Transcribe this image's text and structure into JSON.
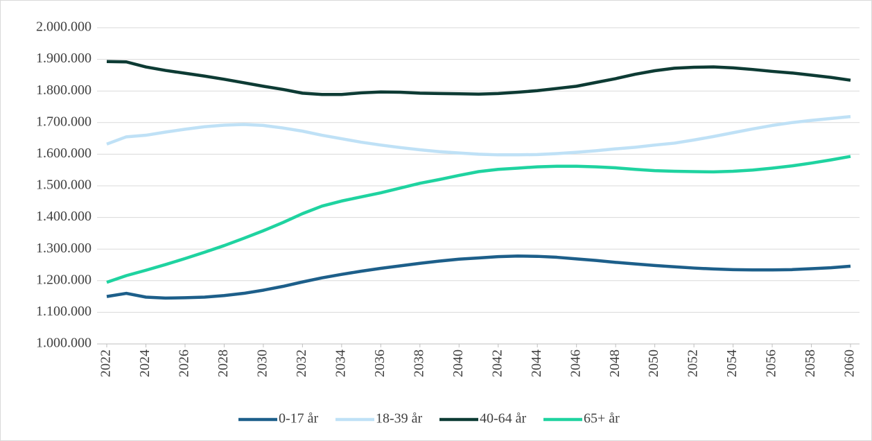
{
  "chart_data": {
    "type": "line",
    "x": [
      2022,
      2023,
      2024,
      2025,
      2026,
      2027,
      2028,
      2029,
      2030,
      2031,
      2032,
      2033,
      2034,
      2035,
      2036,
      2037,
      2038,
      2039,
      2040,
      2041,
      2042,
      2043,
      2044,
      2045,
      2046,
      2047,
      2048,
      2049,
      2050,
      2051,
      2052,
      2053,
      2054,
      2055,
      2056,
      2057,
      2058,
      2059,
      2060
    ],
    "xlim": [
      2022,
      2060
    ],
    "xticks": [
      2022,
      2024,
      2026,
      2028,
      2030,
      2032,
      2034,
      2036,
      2038,
      2040,
      2042,
      2044,
      2046,
      2048,
      2050,
      2052,
      2054,
      2056,
      2058,
      2060
    ],
    "ylim": [
      1000000,
      2000000
    ],
    "yticks": [
      {
        "value": 1000000,
        "label": "1.000.000"
      },
      {
        "value": 1100000,
        "label": "1.100.000"
      },
      {
        "value": 1200000,
        "label": "1.200.000"
      },
      {
        "value": 1300000,
        "label": "1.300.000"
      },
      {
        "value": 1400000,
        "label": "1.400.000"
      },
      {
        "value": 1500000,
        "label": "1.500.000"
      },
      {
        "value": 1600000,
        "label": "1.600.000"
      },
      {
        "value": 1700000,
        "label": "1.700.000"
      },
      {
        "value": 1800000,
        "label": "1.800.000"
      },
      {
        "value": 1900000,
        "label": "1.900.000"
      },
      {
        "value": 2000000,
        "label": "2.000.000"
      }
    ],
    "grid": true,
    "legend": "bottom",
    "series": [
      {
        "name": "0-17 år",
        "color": "#1d5f8a",
        "values": [
          1150000,
          1160000,
          1148000,
          1145000,
          1146000,
          1148000,
          1153000,
          1160000,
          1170000,
          1182000,
          1196000,
          1209000,
          1220000,
          1230000,
          1239000,
          1247000,
          1255000,
          1262000,
          1268000,
          1272000,
          1276000,
          1278000,
          1277000,
          1274000,
          1269000,
          1264000,
          1258000,
          1253000,
          1248000,
          1244000,
          1240000,
          1237000,
          1235000,
          1234000,
          1234000,
          1235000,
          1238000,
          1241000,
          1246000
        ]
      },
      {
        "name": "18-39 år",
        "color": "#bfe1f6",
        "values": [
          1632000,
          1655000,
          1660000,
          1670000,
          1679000,
          1687000,
          1692000,
          1694000,
          1691000,
          1683000,
          1673000,
          1660000,
          1649000,
          1638000,
          1629000,
          1621000,
          1614000,
          1608000,
          1604000,
          1600000,
          1598000,
          1598000,
          1599000,
          1602000,
          1606000,
          1611000,
          1617000,
          1622000,
          1629000,
          1635000,
          1645000,
          1656000,
          1668000,
          1680000,
          1691000,
          1700000,
          1707000,
          1713000,
          1719000
        ]
      },
      {
        "name": "40-64 år",
        "color": "#0d3b34",
        "values": [
          1893000,
          1892000,
          1876000,
          1865000,
          1856000,
          1847000,
          1837000,
          1826000,
          1815000,
          1805000,
          1793000,
          1789000,
          1789000,
          1794000,
          1797000,
          1796000,
          1793000,
          1792000,
          1791000,
          1790000,
          1792000,
          1796000,
          1801000,
          1808000,
          1815000,
          1827000,
          1839000,
          1853000,
          1864000,
          1872000,
          1875000,
          1876000,
          1873000,
          1868000,
          1862000,
          1857000,
          1850000,
          1843000,
          1834000
        ]
      },
      {
        "name": "65+ år",
        "color": "#1fd3a0",
        "values": [
          1195000,
          1216000,
          1233000,
          1251000,
          1270000,
          1290000,
          1311000,
          1334000,
          1358000,
          1384000,
          1412000,
          1436000,
          1452000,
          1465000,
          1478000,
          1493000,
          1508000,
          1520000,
          1533000,
          1545000,
          1552000,
          1556000,
          1560000,
          1562000,
          1562000,
          1560000,
          1557000,
          1552000,
          1548000,
          1546000,
          1545000,
          1544000,
          1546000,
          1550000,
          1556000,
          1563000,
          1572000,
          1582000,
          1593000
        ]
      }
    ]
  }
}
